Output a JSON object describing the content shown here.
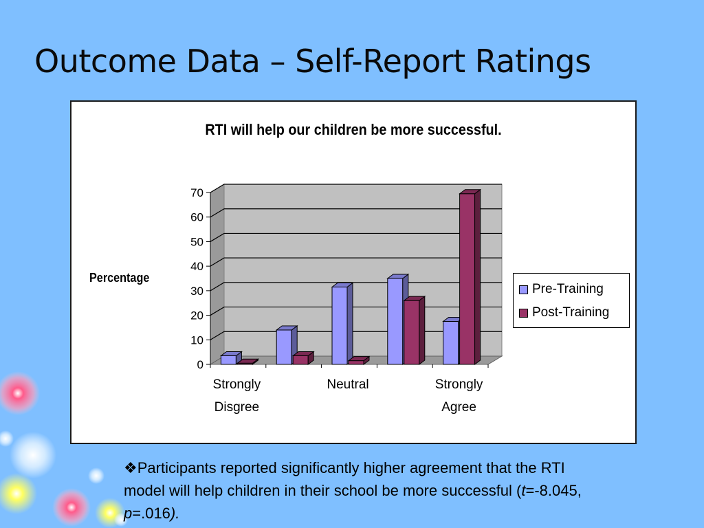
{
  "slide": {
    "title": "Outcome Data – Self-Report Ratings",
    "bullet": {
      "marker": "❖",
      "text": "Participants reported significantly higher agreement that the RTI model will help children in their school be more successful (",
      "t_symbol": "t",
      "t_value": "=-8.045, ",
      "p_symbol": "p",
      "p_value": "=.016",
      "close": ")."
    }
  },
  "chart_data": {
    "type": "bar",
    "title": "RTI will help our children be more successful.",
    "ylabel": "Percentage",
    "xlabel": "",
    "categories": [
      "Strongly Disgree",
      "",
      "Neutral",
      "",
      "Strongly Agree"
    ],
    "category_label_lines": [
      [
        "Strongly",
        "Disgree"
      ],
      [],
      [
        "Neutral"
      ],
      [],
      [
        "Strongly",
        "Agree"
      ]
    ],
    "series": [
      {
        "name": "Pre-Training",
        "color": "#9999ff",
        "values": [
          3.5,
          14,
          31.5,
          35,
          17.5
        ]
      },
      {
        "name": "Post-Training",
        "color": "#993366",
        "values": [
          0.5,
          3.5,
          1.5,
          26,
          69.5
        ]
      }
    ],
    "ylim": [
      0,
      70
    ],
    "yticks": [
      0,
      10,
      20,
      30,
      40,
      50,
      60,
      70
    ],
    "grid": true,
    "legend_position": "right",
    "three_d": true
  }
}
